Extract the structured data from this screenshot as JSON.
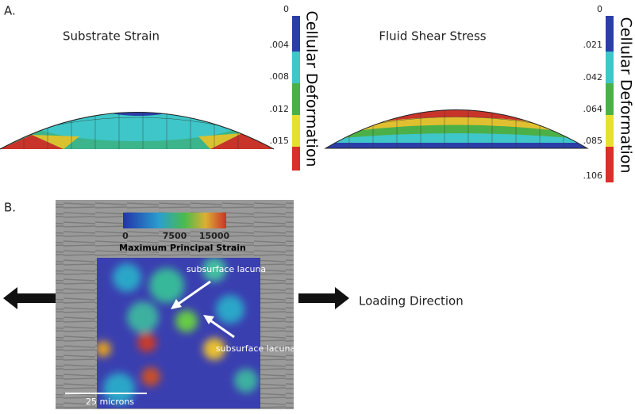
{
  "panel_a": {
    "label": "A.",
    "left": {
      "title": "Substrate Strain",
      "scale_ticks": [
        "0",
        ".004",
        ".008",
        ".012",
        ".015"
      ],
      "scale_title": "Cellular Deformation"
    },
    "right": {
      "title": "Fluid Shear Stress",
      "scale_ticks": [
        "0",
        ".021",
        ".042",
        ".064",
        ".085",
        ".106"
      ],
      "scale_title": "Cellular Deformation"
    }
  },
  "panel_b": {
    "label": "B.",
    "scale_ticks": [
      "0",
      "7500",
      "15000"
    ],
    "scale_title": "Maximum Principal Strain",
    "annotations": [
      "subsurface lacuna",
      "subsurface lacuna"
    ],
    "direction_label": "Loading Direction",
    "scale_bar": "25 microns"
  }
}
